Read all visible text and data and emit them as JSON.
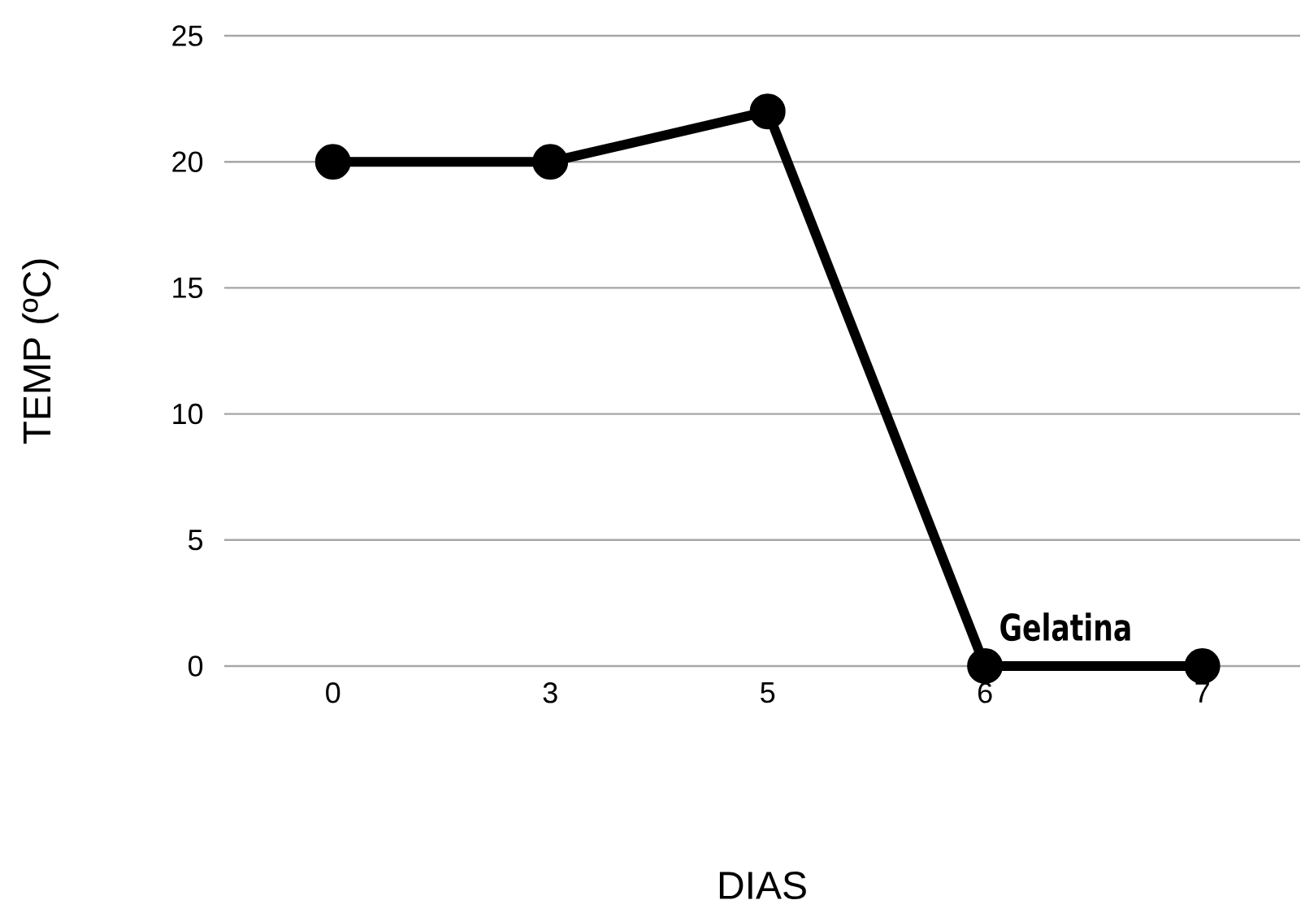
{
  "chart_data": {
    "type": "line",
    "categories": [
      "0",
      "3",
      "5",
      "6",
      "7"
    ],
    "series": [
      {
        "color": "#000000",
        "values": [
          20,
          20,
          22,
          0,
          0
        ]
      }
    ],
    "xlabel": "DIAS",
    "ylabel": "TEMP (ºC)",
    "ylim": [
      0,
      25
    ],
    "yticks": [
      0,
      5,
      10,
      15,
      20,
      25
    ],
    "grid": "y",
    "marker": "circle",
    "line_style": "solid",
    "annotations": [
      {
        "text": "Gelatina",
        "x": "6",
        "y": 0
      }
    ]
  }
}
